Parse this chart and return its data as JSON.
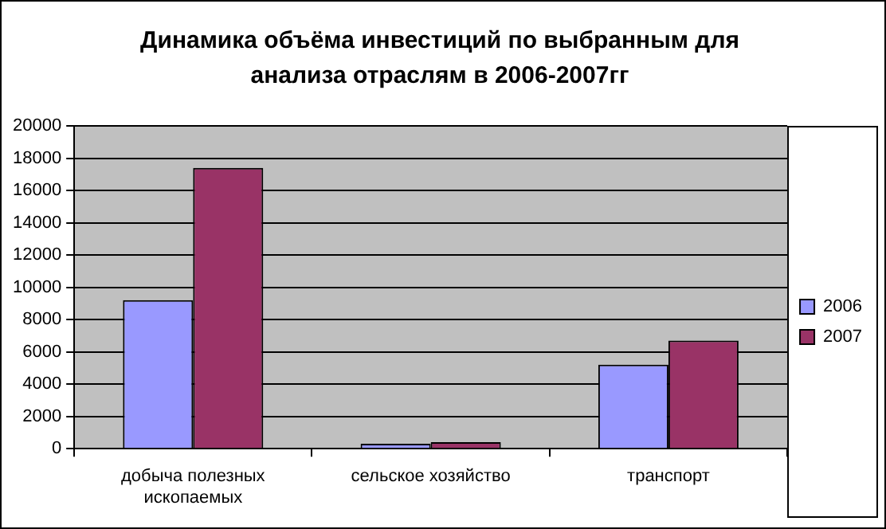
{
  "chart_data": {
    "type": "bar",
    "title": "Динамика объёма инвестиций по выбранным для анализа отраслям в 2006-2007гг",
    "categories": [
      "добыча полезных ископаемых",
      "сельское хозяйство",
      "транспорт"
    ],
    "series": [
      {
        "name": "2006",
        "color": "#9999ff",
        "values": [
          9200,
          300,
          5200
        ]
      },
      {
        "name": "2007",
        "color": "#993366",
        "values": [
          17400,
          400,
          6700
        ]
      }
    ],
    "ylim": [
      0,
      20000
    ],
    "yticks": [
      0,
      2000,
      4000,
      6000,
      8000,
      10000,
      12000,
      14000,
      16000,
      18000,
      20000
    ],
    "grid": "y",
    "legend": "right"
  }
}
